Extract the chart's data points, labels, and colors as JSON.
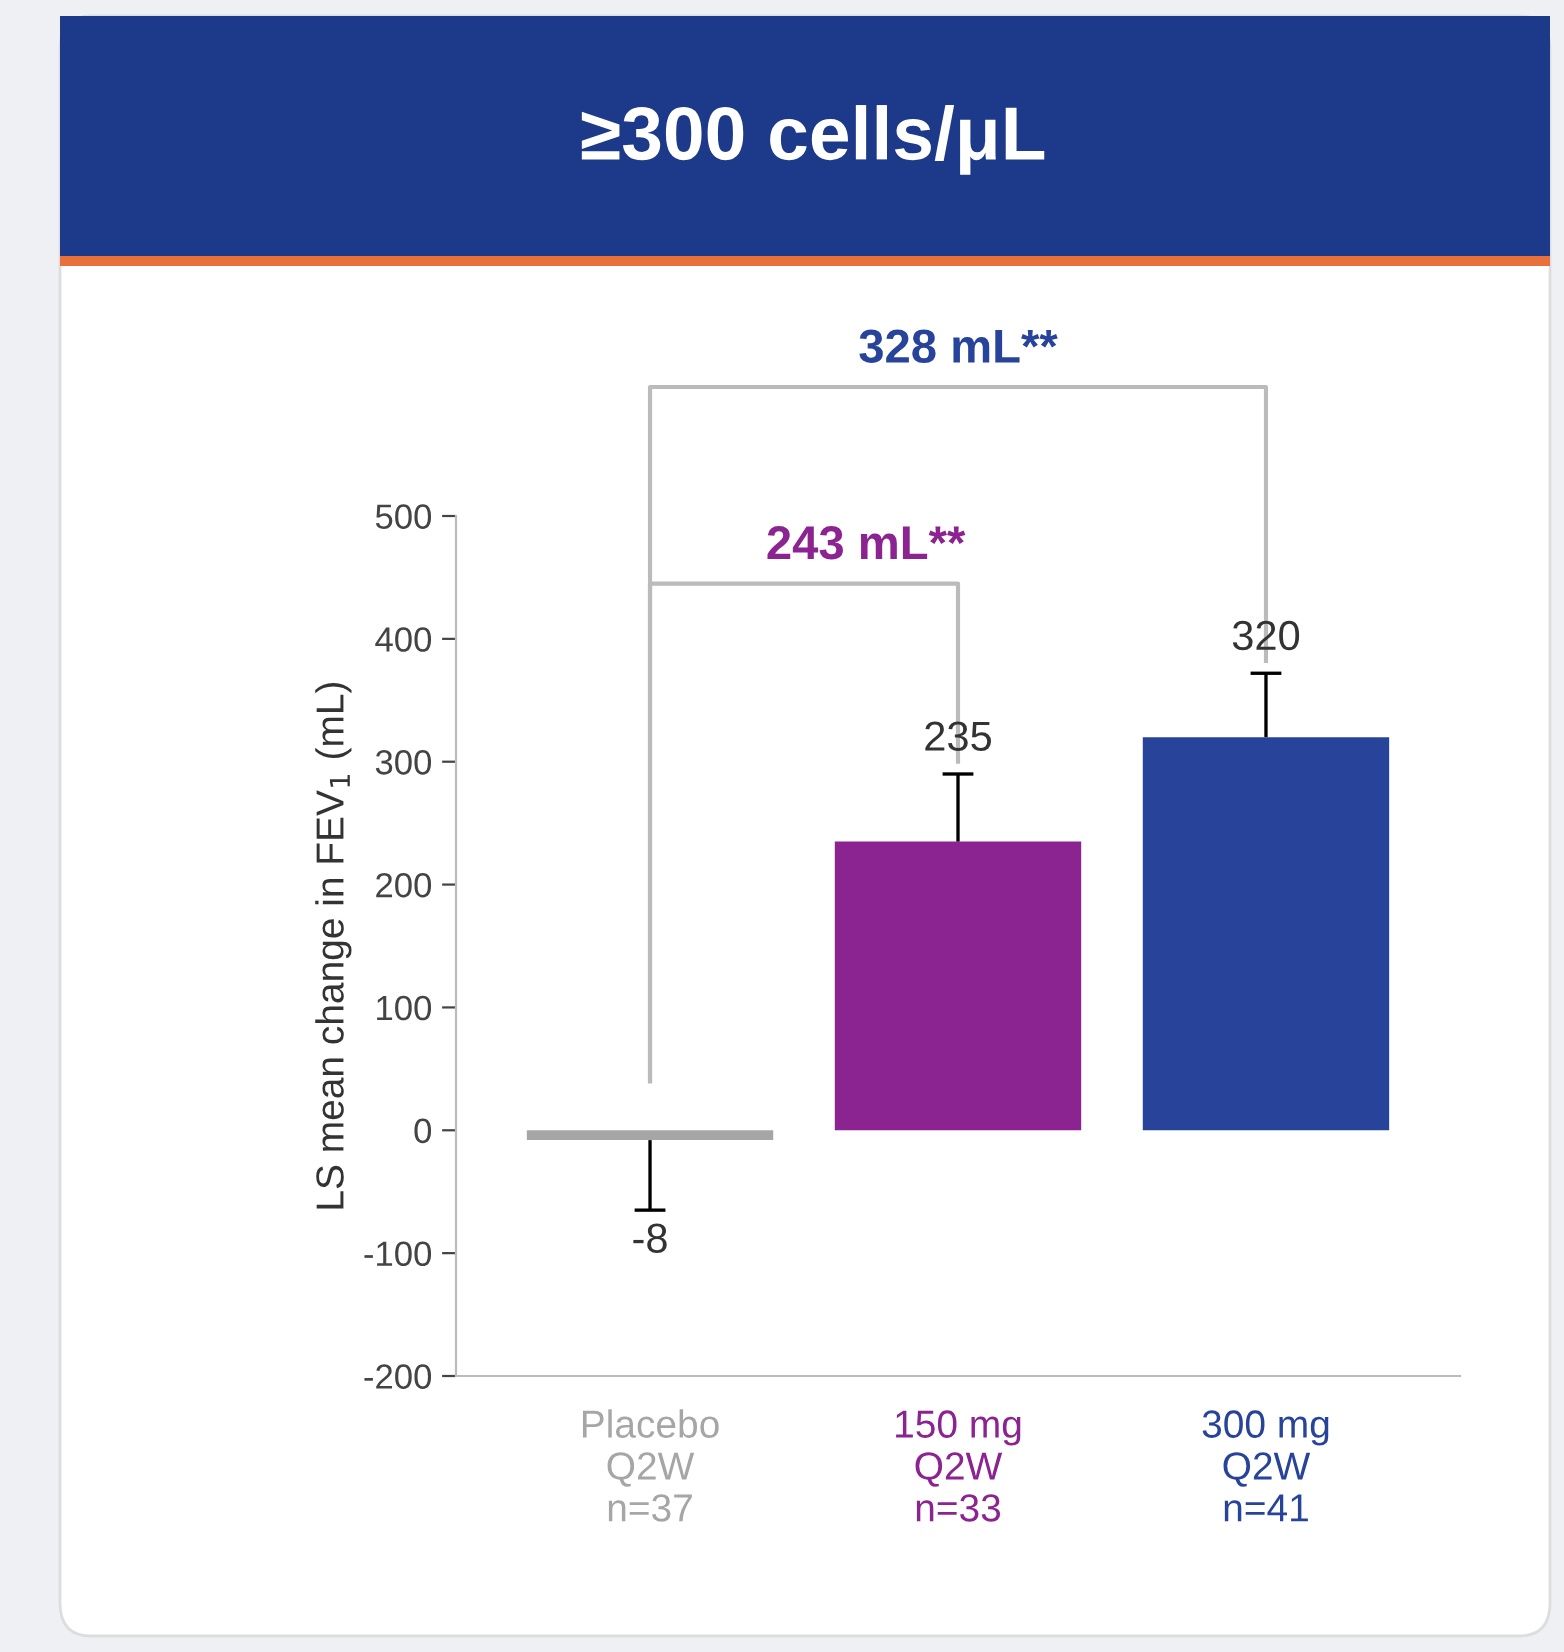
{
  "chart_data": {
    "type": "bar",
    "title": "≥300 cells/μL",
    "ylabel": "LS mean change in FEV$_{1}$ (mL)",
    "categories": [
      "Placebo\nQ2W\nn=37",
      "150 mg\nQ2W\nn=33",
      "300 mg\nQ2W\nn=41"
    ],
    "values": [
      -8,
      235,
      320
    ],
    "colors": [
      "#a6a6a6",
      "#8b2390",
      "#27449a"
    ],
    "errors": [
      [
        -65,
        -8
      ],
      [
        235,
        290
      ],
      [
        320,
        372
      ]
    ],
    "data_labels": true,
    "ylim": [
      -200,
      500
    ],
    "yticks": [
      -200,
      -100,
      0,
      100,
      200,
      300,
      400,
      500
    ],
    "grid": false,
    "annotations": [
      "328 mL**",
      "243 mL**"
    ]
  }
}
